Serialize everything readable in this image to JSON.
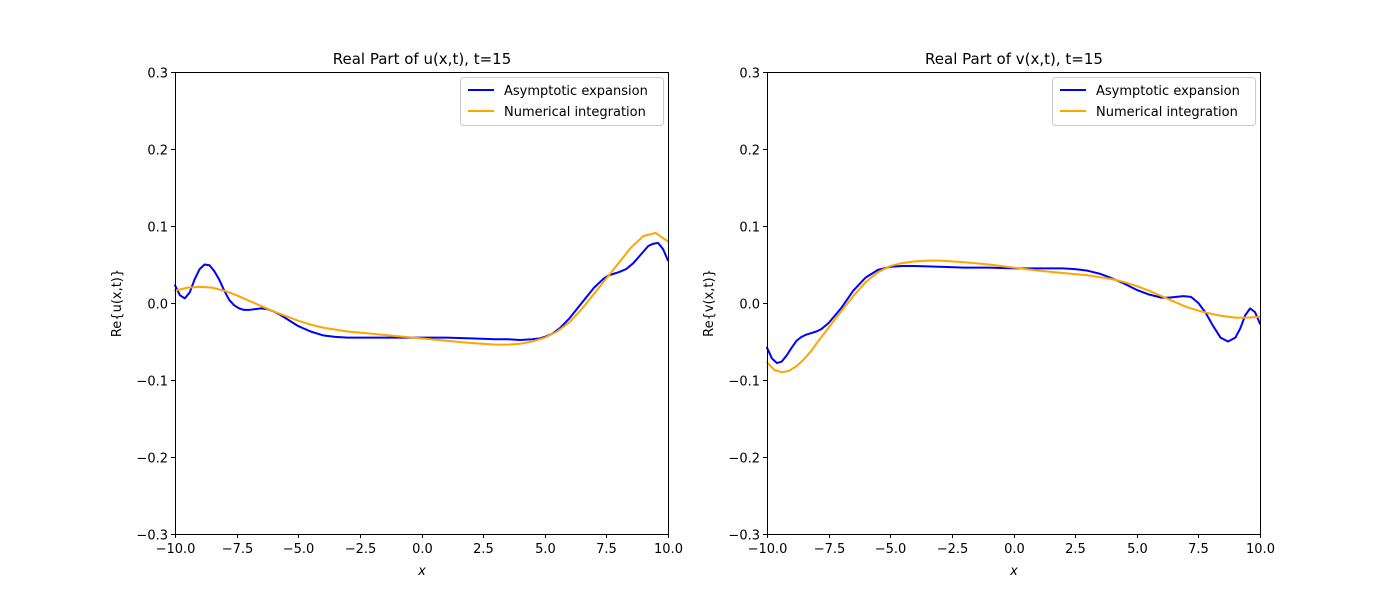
{
  "chart_data": [
    {
      "type": "line",
      "title": "Real Part of u(x,t), t=15",
      "xlabel": "x",
      "ylabel": "Re{u(x,t)}",
      "xlim": [
        -10,
        10
      ],
      "ylim": [
        -0.3,
        0.3
      ],
      "xticks": [
        "−10.0",
        "−7.5",
        "−5.0",
        "−2.5",
        "0.0",
        "2.5",
        "5.0",
        "7.5",
        "10.0"
      ],
      "yticks": [
        "−0.3",
        "−0.2",
        "−0.1",
        "0.0",
        "0.1",
        "0.2",
        "0.3"
      ],
      "legend_position": "top-right",
      "series": [
        {
          "name": "Asymptotic expansion",
          "color": "#0000ff",
          "x": [
            -10.0,
            -9.8,
            -9.6,
            -9.4,
            -9.2,
            -9.0,
            -8.8,
            -8.6,
            -8.4,
            -8.2,
            -8.0,
            -7.8,
            -7.6,
            -7.4,
            -7.2,
            -7.0,
            -6.75,
            -6.5,
            -6.25,
            -6.0,
            -5.75,
            -5.5,
            -5.25,
            -5.0,
            -4.5,
            -4.0,
            -3.5,
            -3.0,
            -2.5,
            -2.0,
            -1.0,
            0.0,
            1.0,
            2.0,
            3.0,
            3.5,
            4.0,
            4.5,
            4.8,
            5.0,
            5.3,
            5.6,
            6.0,
            6.5,
            7.0,
            7.4,
            7.6,
            7.8,
            8.0,
            8.3,
            8.6,
            8.9,
            9.2,
            9.4,
            9.6,
            9.8,
            10.0
          ],
          "y": [
            0.023,
            0.01,
            0.006,
            0.014,
            0.031,
            0.044,
            0.05,
            0.049,
            0.041,
            0.03,
            0.016,
            0.004,
            -0.003,
            -0.007,
            -0.009,
            -0.009,
            -0.008,
            -0.007,
            -0.008,
            -0.011,
            -0.015,
            -0.02,
            -0.025,
            -0.03,
            -0.037,
            -0.042,
            -0.044,
            -0.045,
            -0.045,
            -0.045,
            -0.045,
            -0.045,
            -0.045,
            -0.046,
            -0.047,
            -0.047,
            -0.048,
            -0.047,
            -0.046,
            -0.044,
            -0.04,
            -0.033,
            -0.02,
            0.0,
            0.02,
            0.032,
            0.036,
            0.038,
            0.04,
            0.044,
            0.052,
            0.063,
            0.074,
            0.077,
            0.078,
            0.07,
            0.055
          ]
        },
        {
          "name": "Numerical integration",
          "color": "#ffa500",
          "x": [
            -10.0,
            -9.5,
            -9.0,
            -8.5,
            -8.0,
            -7.5,
            -7.0,
            -6.5,
            -6.0,
            -5.5,
            -5.0,
            -4.5,
            -4.0,
            -3.0,
            -2.0,
            -1.0,
            0.0,
            1.0,
            2.0,
            3.0,
            3.5,
            4.0,
            4.5,
            5.0,
            5.5,
            6.0,
            6.5,
            7.0,
            7.5,
            8.0,
            8.5,
            9.0,
            9.5,
            10.0
          ],
          "y": [
            0.016,
            0.02,
            0.021,
            0.02,
            0.016,
            0.01,
            0.003,
            -0.004,
            -0.011,
            -0.017,
            -0.023,
            -0.028,
            -0.032,
            -0.037,
            -0.04,
            -0.043,
            -0.046,
            -0.049,
            -0.052,
            -0.054,
            -0.054,
            -0.053,
            -0.05,
            -0.045,
            -0.037,
            -0.025,
            -0.008,
            0.012,
            0.032,
            0.052,
            0.072,
            0.087,
            0.091,
            0.08
          ]
        }
      ]
    },
    {
      "type": "line",
      "title": "Real Part of v(x,t), t=15",
      "xlabel": "x",
      "ylabel": "Re{v(x,t)}",
      "xlim": [
        -10,
        10
      ],
      "ylim": [
        -0.3,
        0.3
      ],
      "xticks": [
        "−10.0",
        "−7.5",
        "−5.0",
        "−2.5",
        "0.0",
        "2.5",
        "5.0",
        "7.5",
        "10.0"
      ],
      "yticks": [
        "−0.3",
        "−0.2",
        "−0.1",
        "0.0",
        "0.1",
        "0.2",
        "0.3"
      ],
      "legend_position": "top-right",
      "series": [
        {
          "name": "Asymptotic expansion",
          "color": "#0000ff",
          "x": [
            -10.0,
            -9.8,
            -9.6,
            -9.4,
            -9.2,
            -9.0,
            -8.8,
            -8.6,
            -8.4,
            -8.2,
            -8.0,
            -7.8,
            -7.5,
            -7.0,
            -6.5,
            -6.0,
            -5.5,
            -5.0,
            -4.5,
            -4.0,
            -3.0,
            -2.0,
            -1.0,
            0.0,
            1.0,
            2.0,
            2.5,
            3.0,
            3.5,
            4.0,
            4.5,
            5.0,
            5.5,
            6.0,
            6.3,
            6.6,
            6.9,
            7.2,
            7.5,
            7.8,
            8.1,
            8.4,
            8.7,
            9.0,
            9.2,
            9.4,
            9.6,
            9.8,
            10.0
          ],
          "y": [
            -0.058,
            -0.072,
            -0.078,
            -0.076,
            -0.068,
            -0.058,
            -0.049,
            -0.044,
            -0.041,
            -0.039,
            -0.037,
            -0.034,
            -0.026,
            -0.007,
            0.016,
            0.033,
            0.043,
            0.047,
            0.048,
            0.048,
            0.047,
            0.046,
            0.046,
            0.045,
            0.045,
            0.045,
            0.044,
            0.042,
            0.038,
            0.032,
            0.025,
            0.017,
            0.011,
            0.007,
            0.007,
            0.008,
            0.009,
            0.008,
            0.0,
            -0.013,
            -0.03,
            -0.045,
            -0.05,
            -0.045,
            -0.033,
            -0.016,
            -0.007,
            -0.012,
            -0.027
          ]
        },
        {
          "name": "Numerical integration",
          "color": "#ffa500",
          "x": [
            -10.0,
            -9.7,
            -9.4,
            -9.1,
            -8.8,
            -8.5,
            -8.2,
            -8.0,
            -7.5,
            -7.0,
            -6.5,
            -6.0,
            -5.5,
            -5.0,
            -4.5,
            -4.0,
            -3.5,
            -3.0,
            -2.5,
            -2.0,
            -1.0,
            0.0,
            1.0,
            2.0,
            3.0,
            4.0,
            4.5,
            5.0,
            5.5,
            6.0,
            6.5,
            7.0,
            7.5,
            8.0,
            8.5,
            9.0,
            9.5,
            10.0
          ],
          "y": [
            -0.077,
            -0.087,
            -0.09,
            -0.088,
            -0.082,
            -0.073,
            -0.062,
            -0.053,
            -0.032,
            -0.011,
            0.009,
            0.027,
            0.04,
            0.048,
            0.052,
            0.054,
            0.055,
            0.055,
            0.054,
            0.053,
            0.05,
            0.046,
            0.042,
            0.039,
            0.036,
            0.031,
            0.027,
            0.022,
            0.016,
            0.009,
            0.002,
            -0.005,
            -0.01,
            -0.014,
            -0.017,
            -0.019,
            -0.019,
            -0.018
          ]
        }
      ]
    }
  ]
}
